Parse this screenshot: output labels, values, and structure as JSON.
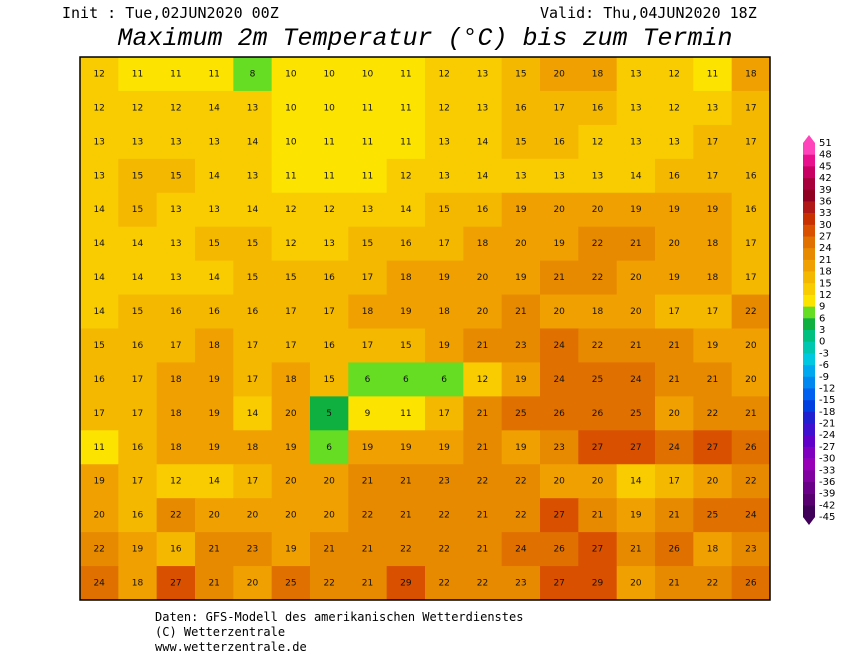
{
  "header": {
    "init": "Init : Tue,02JUN2020 00Z",
    "valid": "Valid: Thu,04JUN2020 18Z",
    "title": "Maximum 2m Temperatur (°C) bis zum Termin"
  },
  "footer": {
    "lines": [
      "Daten: GFS-Modell des amerikanischen Wetterdienstes",
      "(C) Wetterzentrale",
      "www.wetterzentrale.de"
    ]
  },
  "colorbar": {
    "labels": [
      51,
      48,
      45,
      42,
      39,
      36,
      33,
      30,
      27,
      24,
      21,
      18,
      15,
      12,
      9,
      6,
      3,
      0,
      -3,
      -6,
      -9,
      -12,
      -15,
      -18,
      -21,
      -24,
      -27,
      -30,
      -33,
      -36,
      -39,
      -42,
      -45
    ],
    "colors": [
      "#ff44bb",
      "#e8108c",
      "#c80064",
      "#a8003c",
      "#900020",
      "#b01818",
      "#c83000",
      "#d85000",
      "#e07000",
      "#e88a00",
      "#f0a000",
      "#f5b800",
      "#f8cc00",
      "#fce400",
      "#66dd22",
      "#10b040",
      "#00c080",
      "#00c8b0",
      "#00c8e0",
      "#00a8f0",
      "#0088f0",
      "#0060f0",
      "#0040e0",
      "#2020d0",
      "#4010d0",
      "#6000c8",
      "#8000c0",
      "#9800b8",
      "#8000a0",
      "#6a0088",
      "#580070",
      "#40005a"
    ]
  },
  "map": {
    "rows": [
      [
        12,
        11,
        11,
        11,
        8,
        10,
        10,
        10,
        11,
        12,
        13,
        15,
        20,
        18,
        13,
        12,
        11,
        18
      ],
      [
        12,
        12,
        12,
        14,
        13,
        10,
        10,
        11,
        11,
        12,
        13,
        16,
        17,
        16,
        13,
        12,
        13,
        17
      ],
      [
        13,
        13,
        13,
        13,
        14,
        10,
        11,
        11,
        11,
        13,
        14,
        15,
        16,
        12,
        13,
        13,
        17,
        17
      ],
      [
        13,
        15,
        15,
        14,
        13,
        11,
        11,
        11,
        12,
        13,
        14,
        13,
        13,
        13,
        14,
        16,
        17,
        16
      ],
      [
        14,
        15,
        13,
        13,
        14,
        12,
        12,
        13,
        14,
        15,
        16,
        19,
        20,
        20,
        19,
        19,
        19,
        16
      ],
      [
        14,
        14,
        13,
        15,
        15,
        12,
        13,
        15,
        16,
        17,
        18,
        20,
        19,
        22,
        21,
        20,
        18,
        17
      ],
      [
        14,
        14,
        13,
        14,
        15,
        15,
        16,
        17,
        18,
        19,
        20,
        19,
        21,
        22,
        20,
        19,
        18,
        17
      ],
      [
        14,
        15,
        16,
        16,
        16,
        17,
        17,
        18,
        19,
        18,
        20,
        21,
        20,
        18,
        20,
        17,
        17,
        22
      ],
      [
        15,
        16,
        17,
        18,
        17,
        17,
        16,
        17,
        15,
        19,
        21,
        23,
        24,
        22,
        21,
        21,
        19,
        20
      ],
      [
        16,
        17,
        18,
        19,
        17,
        18,
        15,
        6,
        6,
        6,
        12,
        19,
        24,
        25,
        24,
        21,
        21,
        20
      ],
      [
        17,
        17,
        18,
        19,
        14,
        20,
        5,
        9,
        11,
        17,
        21,
        25,
        26,
        26,
        25,
        20,
        22,
        21
      ],
      [
        11,
        16,
        18,
        19,
        18,
        19,
        6,
        19,
        19,
        19,
        21,
        19,
        23,
        27,
        27,
        24,
        27,
        26
      ],
      [
        19,
        17,
        12,
        14,
        17,
        20,
        20,
        21,
        21,
        23,
        22,
        22,
        20,
        20,
        14,
        17,
        20,
        22
      ],
      [
        20,
        16,
        22,
        20,
        20,
        20,
        20,
        22,
        21,
        22,
        21,
        22,
        27,
        21,
        19,
        21,
        25,
        24
      ],
      [
        22,
        19,
        16,
        21,
        23,
        19,
        21,
        21,
        22,
        22,
        21,
        24,
        26,
        27,
        21,
        26,
        18,
        23
      ],
      [
        24,
        18,
        27,
        21,
        20,
        25,
        22,
        21,
        29,
        22,
        22,
        23,
        27,
        29,
        20,
        21,
        22,
        26
      ]
    ]
  }
}
